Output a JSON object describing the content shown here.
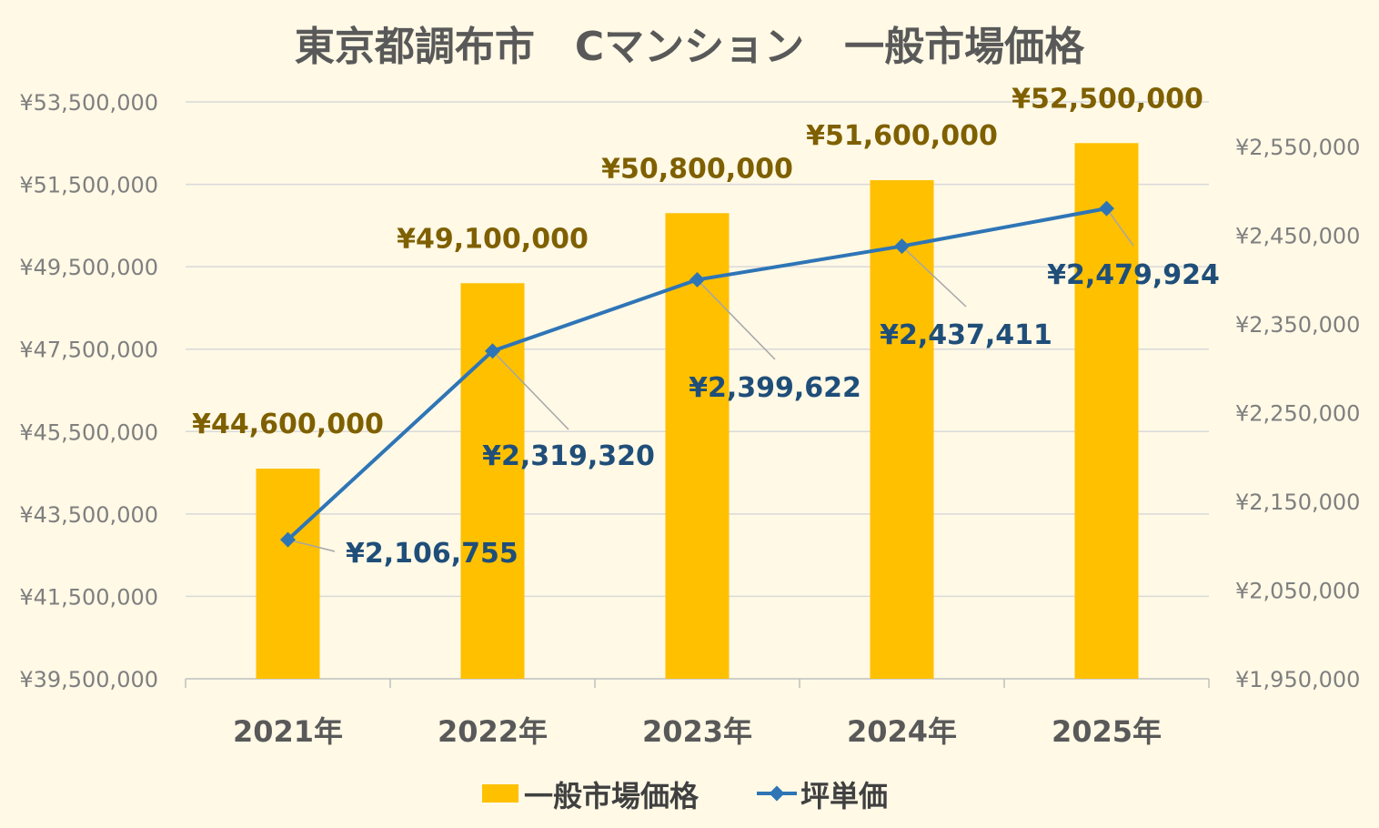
{
  "colors": {
    "background": "#fff9e6",
    "bar": "#ffc000",
    "line": "#2e75b6",
    "bar_label": "#7f6000",
    "line_label": "#1f4e79",
    "grid": "#d9d9d9",
    "axis_text": "#7f7f7f"
  },
  "chart_data": {
    "type": "bar",
    "title": "東京都調布市　Cマンション　一般市場価格",
    "categories": [
      "2021年",
      "2022年",
      "2023年",
      "2024年",
      "2025年"
    ],
    "series": [
      {
        "name": "一般市場価格",
        "type": "bar",
        "axis": "left",
        "values": [
          44600000,
          49100000,
          50800000,
          51600000,
          52500000
        ],
        "labels": [
          "¥44,600,000",
          "¥49,100,000",
          "¥50,800,000",
          "¥51,600,000",
          "¥52,500,000"
        ]
      },
      {
        "name": "坪単価",
        "type": "line",
        "axis": "right",
        "values": [
          2106755,
          2319320,
          2399622,
          2437411,
          2479924
        ],
        "labels": [
          "¥2,106,755",
          "¥2,319,320",
          "¥2,399,622",
          "¥2,437,411",
          "¥2,479,924"
        ]
      }
    ],
    "y_left": {
      "ylim": [
        39500000,
        53500000
      ],
      "ticks": [
        39500000,
        41500000,
        43500000,
        45500000,
        47500000,
        49500000,
        51500000,
        53500000
      ],
      "tick_labels": [
        "¥39,500,000",
        "¥41,500,000",
        "¥43,500,000",
        "¥45,500,000",
        "¥47,500,000",
        "¥49,500,000",
        "¥51,500,000",
        "¥53,500,000"
      ]
    },
    "y_right": {
      "ylim": [
        1950000,
        2600000
      ],
      "ticks": [
        1950000,
        2050000,
        2150000,
        2250000,
        2350000,
        2450000,
        2550000
      ],
      "tick_labels": [
        "¥1,950,000",
        "¥2,050,000",
        "¥2,150,000",
        "¥2,250,000",
        "¥2,350,000",
        "¥2,450,000",
        "¥2,550,000"
      ]
    },
    "grid": true,
    "legend": "bottom"
  }
}
